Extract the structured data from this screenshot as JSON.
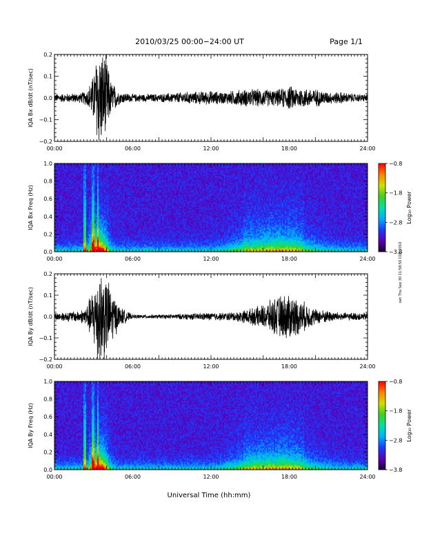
{
  "header": {
    "date_range": "2010/03/25  00:00−24:00 UT",
    "page": "Page 1/1"
  },
  "xaxis": {
    "label": "Universal Time (hh:mm)",
    "ticks": [
      "00:00",
      "06:00",
      "12:00",
      "18:00",
      "24:00"
    ]
  },
  "side_note": "swt Thu Sep 30 11:58:50 CDT 2010",
  "colors": {
    "waveform": "#000000",
    "colormap": [
      "#1a0033",
      "#5b00b5",
      "#1a3cff",
      "#00b0ff",
      "#00e0a0",
      "#40d020",
      "#d0e000",
      "#ff8000",
      "#ff0000"
    ]
  },
  "chart_data": [
    {
      "type": "line",
      "ylabel": "IQA Bx dB/dt (nT/sec)",
      "xlim": [
        0,
        24
      ],
      "ylim": [
        -0.2,
        0.2
      ],
      "yticks": [
        "0.2",
        "0.1",
        "0.0",
        "−0.1",
        "−0.2"
      ],
      "series": [
        {
          "envelope_hours": [
            0,
            2,
            2.5,
            3,
            3.3,
            3.6,
            4,
            4.3,
            5,
            6,
            8,
            10,
            12,
            13,
            14,
            15,
            16,
            17,
            18,
            19,
            20,
            21,
            22,
            23,
            24
          ],
          "amplitude": [
            0.02,
            0.025,
            0.04,
            0.12,
            0.25,
            0.25,
            0.2,
            0.09,
            0.03,
            0.02,
            0.02,
            0.03,
            0.035,
            0.03,
            0.04,
            0.045,
            0.045,
            0.04,
            0.06,
            0.05,
            0.045,
            0.03,
            0.03,
            0.02,
            0.02
          ]
        }
      ]
    },
    {
      "type": "heatmap",
      "ylabel": "IQA Bx Freq (Hz)",
      "xlim": [
        0,
        24
      ],
      "ylim": [
        0,
        1.0
      ],
      "yticks": [
        "1.0",
        "0.8",
        "0.6",
        "0.4",
        "0.2",
        "0.0"
      ],
      "colorbar": {
        "label": "Log₁₀ Power",
        "ticks": [
          "−0.8",
          "−1.8",
          "−2.8",
          "−3.8"
        ],
        "range": [
          -3.8,
          -0.8
        ]
      }
    },
    {
      "type": "line",
      "ylabel": "IQA By dB/dt (nT/sec)",
      "xlim": [
        0,
        24
      ],
      "ylim": [
        -0.2,
        0.2
      ],
      "yticks": [
        "0.2",
        "0.1",
        "0.0",
        "−0.1",
        "−0.2"
      ],
      "series": [
        {
          "envelope_hours": [
            0,
            2,
            2.5,
            3,
            3.3,
            3.6,
            4,
            4.5,
            5,
            6,
            8,
            10,
            12,
            13,
            14,
            15,
            16,
            17,
            18,
            19,
            20,
            21,
            22,
            23,
            24
          ],
          "amplitude": [
            0.02,
            0.03,
            0.06,
            0.15,
            0.25,
            0.25,
            0.2,
            0.12,
            0.05,
            0.01,
            0.01,
            0.015,
            0.02,
            0.02,
            0.025,
            0.04,
            0.06,
            0.1,
            0.12,
            0.08,
            0.04,
            0.03,
            0.02,
            0.02,
            0.02
          ]
        }
      ]
    },
    {
      "type": "heatmap",
      "ylabel": "IQA By Freq (Hz)",
      "xlim": [
        0,
        24
      ],
      "ylim": [
        0,
        1.0
      ],
      "yticks": [
        "1.0",
        "0.8",
        "0.6",
        "0.4",
        "0.2",
        "0.0"
      ],
      "colorbar": {
        "label": "Log₁₀ Power",
        "ticks": [
          "−0.8",
          "−1.8",
          "−2.8",
          "−3.8"
        ],
        "range": [
          -3.8,
          -0.8
        ]
      }
    }
  ]
}
